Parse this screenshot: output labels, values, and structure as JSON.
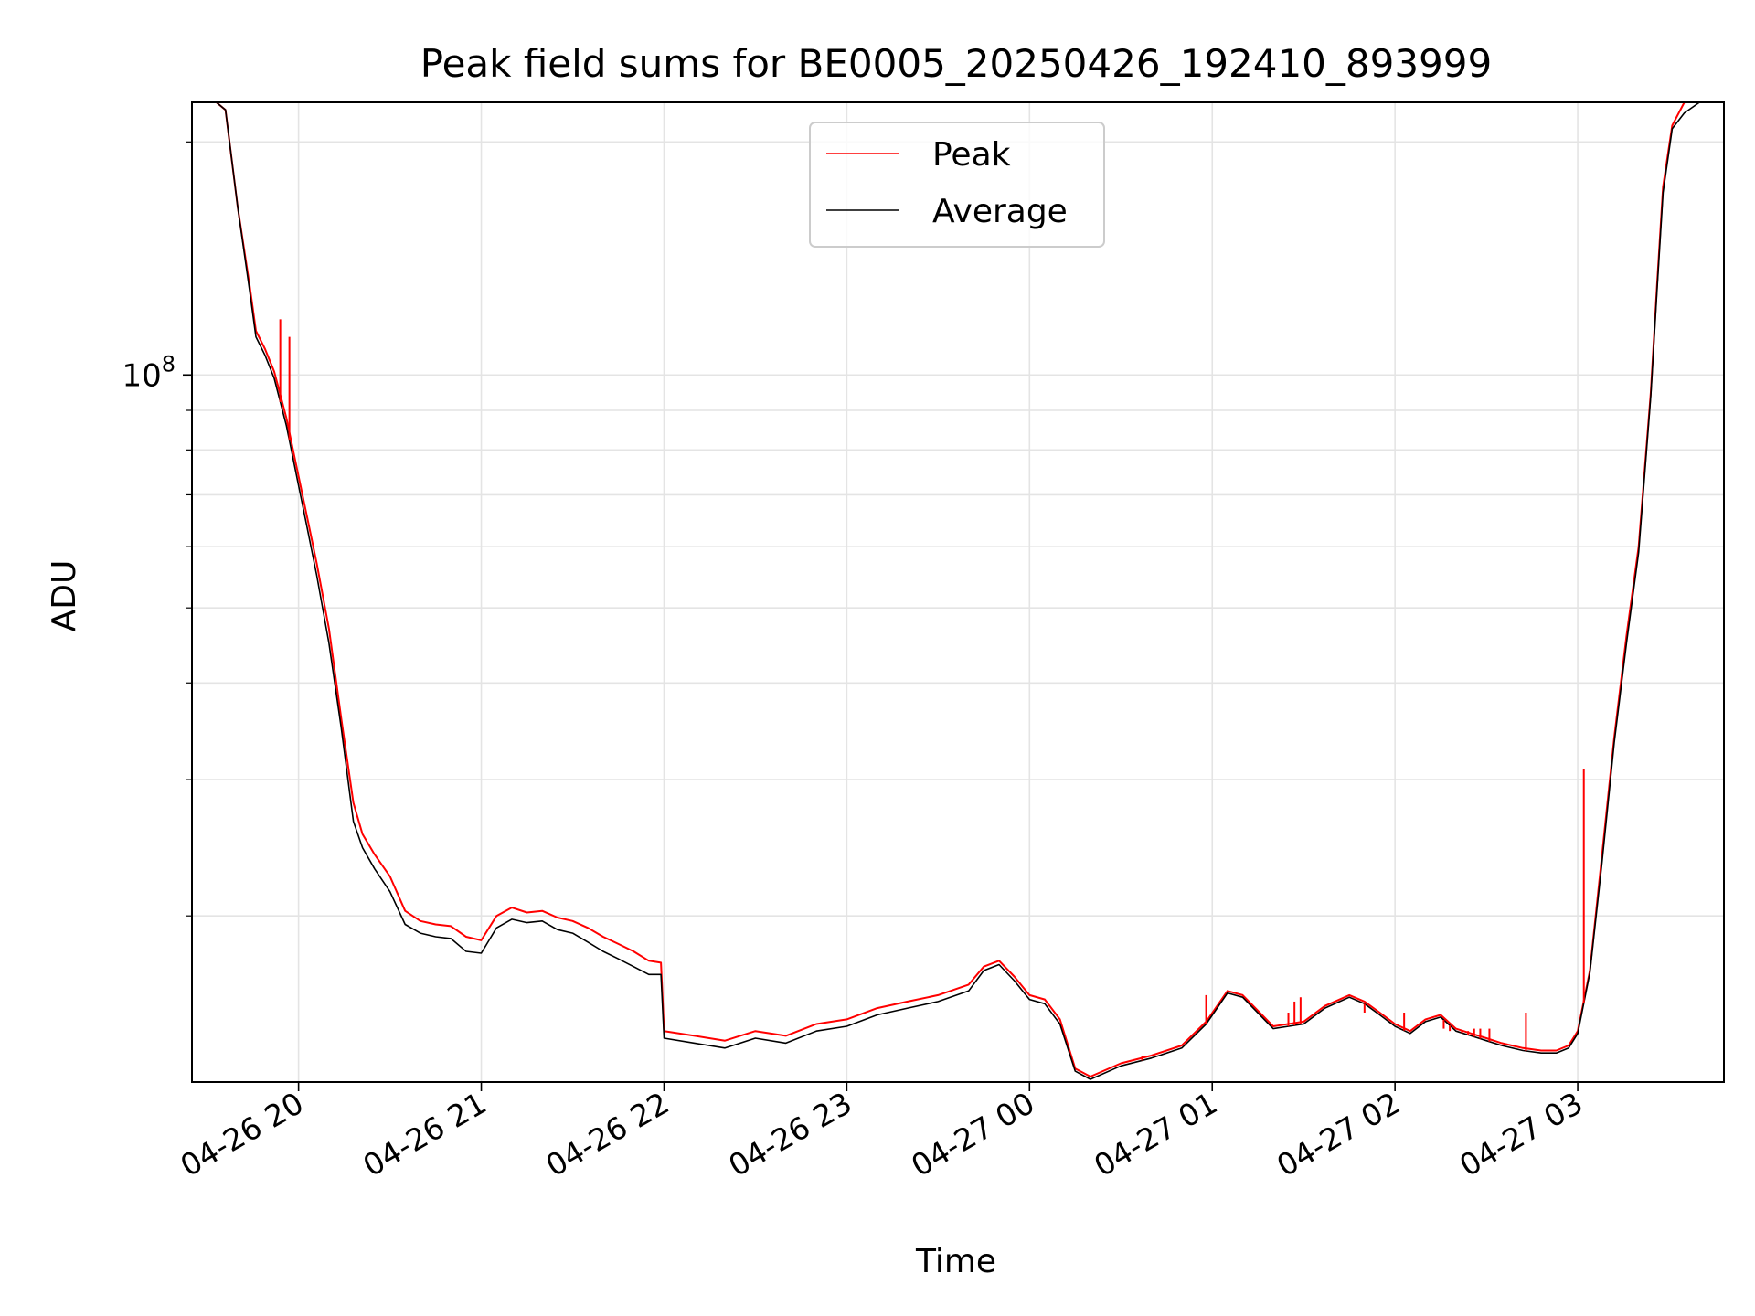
{
  "chart_data": {
    "type": "line",
    "title": "Peak field sums for BE0005_20250426_192410_893999",
    "xlabel": "Time",
    "ylabel": "ADU",
    "y_scale": "log",
    "ylim": [
      12200000,
      225000000
    ],
    "xlim": [
      "2025-04-26 19:25",
      "2025-04-27 03:48"
    ],
    "x_tick_labels": [
      "04-26 20",
      "04-26 21",
      "04-26 22",
      "04-26 23",
      "04-27 00",
      "04-27 01",
      "04-27 02",
      "04-27 03"
    ],
    "x_tick_times": [
      "2025-04-26 20:00",
      "2025-04-26 21:00",
      "2025-04-26 22:00",
      "2025-04-26 23:00",
      "2025-04-27 00:00",
      "2025-04-27 01:00",
      "2025-04-27 02:00",
      "2025-04-27 03:00"
    ],
    "y_tick_label": {
      "base": "10",
      "exp": "8",
      "value": 100000000
    },
    "y_minor_ticks": [
      20000000,
      30000000,
      40000000,
      50000000,
      60000000,
      70000000,
      80000000,
      90000000,
      200000000
    ],
    "grid": true,
    "legend_position": "upper-center",
    "series": [
      {
        "name": "Peak",
        "color": "#ff0000",
        "x": [
          "2025-04-26 19:25",
          "2025-04-26 19:33",
          "2025-04-26 19:36",
          "2025-04-26 19:40",
          "2025-04-26 19:44",
          "2025-04-26 19:46",
          "2025-04-26 19:49",
          "2025-04-26 19:52",
          "2025-04-26 19:56",
          "2025-04-26 20:00",
          "2025-04-26 20:03",
          "2025-04-26 20:06",
          "2025-04-26 20:10",
          "2025-04-26 20:14",
          "2025-04-26 20:18",
          "2025-04-26 20:21",
          "2025-04-26 20:25",
          "2025-04-26 20:30",
          "2025-04-26 20:35",
          "2025-04-26 20:40",
          "2025-04-26 20:45",
          "2025-04-26 20:50",
          "2025-04-26 20:55",
          "2025-04-26 21:00",
          "2025-04-26 21:05",
          "2025-04-26 21:10",
          "2025-04-26 21:15",
          "2025-04-26 21:20",
          "2025-04-26 21:25",
          "2025-04-26 21:30",
          "2025-04-26 21:35",
          "2025-04-26 21:40",
          "2025-04-26 21:45",
          "2025-04-26 21:50",
          "2025-04-26 21:55",
          "2025-04-26 21:59",
          "2025-04-26 22:00",
          "2025-04-26 22:10",
          "2025-04-26 22:20",
          "2025-04-26 22:30",
          "2025-04-26 22:40",
          "2025-04-26 22:50",
          "2025-04-26 23:00",
          "2025-04-26 23:10",
          "2025-04-26 23:20",
          "2025-04-26 23:30",
          "2025-04-26 23:40",
          "2025-04-26 23:45",
          "2025-04-26 23:50",
          "2025-04-26 23:55",
          "2025-04-27 00:00",
          "2025-04-27 00:05",
          "2025-04-27 00:10",
          "2025-04-27 00:15",
          "2025-04-27 00:20",
          "2025-04-27 00:30",
          "2025-04-27 00:40",
          "2025-04-27 00:50",
          "2025-04-27 00:58",
          "2025-04-27 01:05",
          "2025-04-27 01:10",
          "2025-04-27 01:20",
          "2025-04-27 01:30",
          "2025-04-27 01:37",
          "2025-04-27 01:45",
          "2025-04-27 01:50",
          "2025-04-27 01:55",
          "2025-04-27 02:00",
          "2025-04-27 02:05",
          "2025-04-27 02:10",
          "2025-04-27 02:15",
          "2025-04-27 02:20",
          "2025-04-27 02:25",
          "2025-04-27 02:30",
          "2025-04-27 02:35",
          "2025-04-27 02:42",
          "2025-04-27 02:48",
          "2025-04-27 02:53",
          "2025-04-27 02:57",
          "2025-04-27 03:00",
          "2025-04-27 03:04",
          "2025-04-27 03:08",
          "2025-04-27 03:12",
          "2025-04-27 03:16",
          "2025-04-27 03:20",
          "2025-04-27 03:24",
          "2025-04-27 03:26",
          "2025-04-27 03:28",
          "2025-04-27 03:31",
          "2025-04-27 03:35",
          "2025-04-27 03:40",
          "2025-04-27 03:48"
        ],
        "y": [
          225000000,
          225000000,
          220000000,
          165000000,
          130000000,
          114000000,
          108000000,
          101000000,
          88000000,
          74000000,
          65000000,
          57000000,
          47000000,
          36000000,
          28000000,
          25500000,
          24000000,
          22500000,
          20300000,
          19700000,
          19500000,
          19400000,
          18800000,
          18600000,
          20000000,
          20500000,
          20200000,
          20300000,
          19900000,
          19700000,
          19300000,
          18800000,
          18400000,
          18000000,
          17500000,
          17400000,
          14200000,
          14000000,
          13800000,
          14200000,
          14000000,
          14500000,
          14700000,
          15200000,
          15500000,
          15800000,
          16300000,
          17200000,
          17500000,
          16700000,
          15800000,
          15600000,
          14700000,
          12700000,
          12400000,
          12900000,
          13200000,
          13600000,
          14600000,
          16000000,
          15800000,
          14400000,
          14600000,
          15300000,
          15800000,
          15500000,
          15000000,
          14500000,
          14200000,
          14700000,
          14900000,
          14300000,
          14100000,
          13900000,
          13700000,
          13500000,
          13400000,
          13400000,
          13600000,
          14200000,
          17000000,
          24000000,
          34000000,
          46000000,
          60000000,
          95000000,
          130000000,
          175000000,
          210000000,
          225000000,
          225000000,
          225000000
        ]
      },
      {
        "name": "Average",
        "color": "#000000",
        "x": [
          "2025-04-26 19:25",
          "2025-04-26 19:33",
          "2025-04-26 19:36",
          "2025-04-26 19:40",
          "2025-04-26 19:44",
          "2025-04-26 19:46",
          "2025-04-26 19:49",
          "2025-04-26 19:52",
          "2025-04-26 19:56",
          "2025-04-26 20:00",
          "2025-04-26 20:03",
          "2025-04-26 20:06",
          "2025-04-26 20:10",
          "2025-04-26 20:14",
          "2025-04-26 20:18",
          "2025-04-26 20:21",
          "2025-04-26 20:25",
          "2025-04-26 20:30",
          "2025-04-26 20:35",
          "2025-04-26 20:40",
          "2025-04-26 20:45",
          "2025-04-26 20:50",
          "2025-04-26 20:55",
          "2025-04-26 21:00",
          "2025-04-26 21:05",
          "2025-04-26 21:10",
          "2025-04-26 21:15",
          "2025-04-26 21:20",
          "2025-04-26 21:25",
          "2025-04-26 21:30",
          "2025-04-26 21:35",
          "2025-04-26 21:40",
          "2025-04-26 21:45",
          "2025-04-26 21:50",
          "2025-04-26 21:55",
          "2025-04-26 21:59",
          "2025-04-26 22:00",
          "2025-04-26 22:10",
          "2025-04-26 22:20",
          "2025-04-26 22:30",
          "2025-04-26 22:40",
          "2025-04-26 22:50",
          "2025-04-26 23:00",
          "2025-04-26 23:10",
          "2025-04-26 23:20",
          "2025-04-26 23:30",
          "2025-04-26 23:40",
          "2025-04-26 23:45",
          "2025-04-26 23:50",
          "2025-04-26 23:55",
          "2025-04-27 00:00",
          "2025-04-27 00:05",
          "2025-04-27 00:10",
          "2025-04-27 00:15",
          "2025-04-27 00:20",
          "2025-04-27 00:30",
          "2025-04-27 00:40",
          "2025-04-27 00:50",
          "2025-04-27 00:58",
          "2025-04-27 01:05",
          "2025-04-27 01:10",
          "2025-04-27 01:20",
          "2025-04-27 01:30",
          "2025-04-27 01:37",
          "2025-04-27 01:45",
          "2025-04-27 01:50",
          "2025-04-27 01:55",
          "2025-04-27 02:00",
          "2025-04-27 02:05",
          "2025-04-27 02:10",
          "2025-04-27 02:15",
          "2025-04-27 02:20",
          "2025-04-27 02:25",
          "2025-04-27 02:30",
          "2025-04-27 02:35",
          "2025-04-27 02:42",
          "2025-04-27 02:48",
          "2025-04-27 02:53",
          "2025-04-27 02:57",
          "2025-04-27 03:00",
          "2025-04-27 03:04",
          "2025-04-27 03:08",
          "2025-04-27 03:12",
          "2025-04-27 03:16",
          "2025-04-27 03:20",
          "2025-04-27 03:24",
          "2025-04-27 03:26",
          "2025-04-27 03:28",
          "2025-04-27 03:31",
          "2025-04-27 03:35",
          "2025-04-27 03:40",
          "2025-04-27 03:48"
        ],
        "y": [
          225000000,
          225000000,
          220000000,
          165000000,
          128000000,
          112000000,
          106000000,
          99000000,
          86000000,
          72000000,
          63000000,
          55000000,
          45000000,
          35000000,
          26500000,
          24500000,
          23000000,
          21500000,
          19500000,
          19000000,
          18800000,
          18700000,
          18000000,
          17900000,
          19300000,
          19800000,
          19600000,
          19700000,
          19200000,
          19000000,
          18500000,
          18000000,
          17600000,
          17200000,
          16800000,
          16800000,
          13900000,
          13700000,
          13500000,
          13900000,
          13700000,
          14200000,
          14400000,
          14900000,
          15200000,
          15500000,
          16000000,
          17000000,
          17300000,
          16500000,
          15600000,
          15400000,
          14500000,
          12600000,
          12300000,
          12800000,
          13100000,
          13500000,
          14500000,
          15900000,
          15700000,
          14300000,
          14500000,
          15200000,
          15700000,
          15400000,
          14900000,
          14400000,
          14100000,
          14600000,
          14800000,
          14200000,
          14000000,
          13800000,
          13600000,
          13400000,
          13300000,
          13300000,
          13500000,
          14100000,
          16900000,
          23500000,
          33500000,
          45000000,
          59000000,
          94000000,
          128000000,
          172000000,
          208000000,
          218000000,
          225000000,
          225000000
        ]
      }
    ],
    "peak_spikes": [
      {
        "x": "2025-04-26 19:54",
        "y": 118000000
      },
      {
        "x": "2025-04-26 19:57",
        "y": 112000000
      },
      {
        "x": "2025-04-27 00:37",
        "y": 13200000
      },
      {
        "x": "2025-04-27 00:58",
        "y": 15800000
      },
      {
        "x": "2025-04-27 01:25",
        "y": 15000000
      },
      {
        "x": "2025-04-27 01:27",
        "y": 15500000
      },
      {
        "x": "2025-04-27 01:29",
        "y": 15700000
      },
      {
        "x": "2025-04-27 01:50",
        "y": 15000000
      },
      {
        "x": "2025-04-27 02:03",
        "y": 15000000
      },
      {
        "x": "2025-04-27 02:16",
        "y": 14300000
      },
      {
        "x": "2025-04-27 02:18",
        "y": 14200000
      },
      {
        "x": "2025-04-27 02:20",
        "y": 14200000
      },
      {
        "x": "2025-04-27 02:22",
        "y": 14200000
      },
      {
        "x": "2025-04-27 02:24",
        "y": 14200000
      },
      {
        "x": "2025-04-27 02:26",
        "y": 14300000
      },
      {
        "x": "2025-04-27 02:28",
        "y": 14300000
      },
      {
        "x": "2025-04-27 02:31",
        "y": 14300000
      },
      {
        "x": "2025-04-27 02:43",
        "y": 15000000
      },
      {
        "x": "2025-04-27 03:02",
        "y": 31000000
      }
    ]
  }
}
